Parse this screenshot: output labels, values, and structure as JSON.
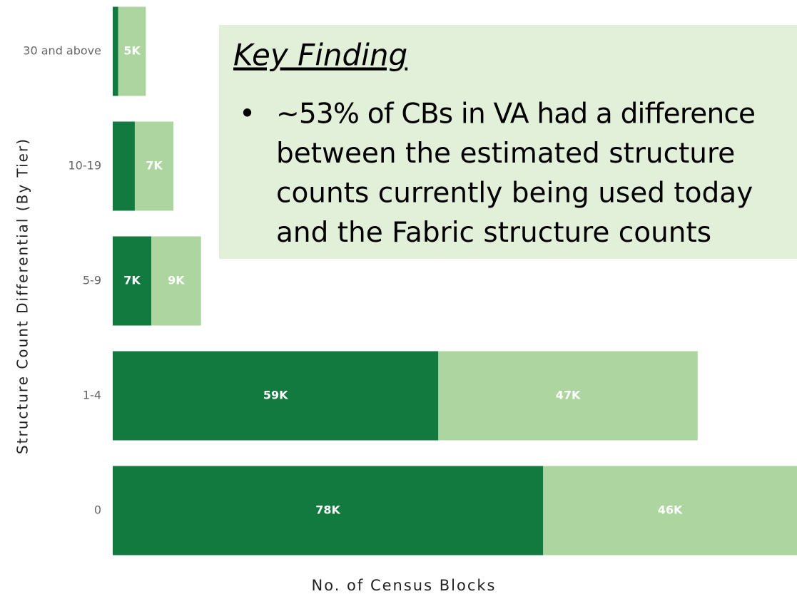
{
  "chart_data": {
    "type": "stacked_barh",
    "categories": [
      "30 and above",
      "10-19",
      "5-9",
      "1-4",
      "0"
    ],
    "series": [
      {
        "color": "#127a3f",
        "values": [
          1,
          4,
          7,
          59,
          78
        ],
        "value_labels": [
          null,
          null,
          "7K",
          "59K",
          "78K"
        ]
      },
      {
        "color": "#acd59f",
        "values": [
          5,
          7,
          9,
          47,
          46
        ],
        "value_labels": [
          "5K",
          "7K",
          "9K",
          "47K",
          "46K"
        ]
      }
    ],
    "xlim": [
      0,
      124
    ],
    "x_label": "No. of Census Blocks",
    "y_label": "Structure Count Differential (By Tier)",
    "annotation": {
      "title": "Key Finding",
      "bullet": "•",
      "lines": [
        "~53% of CBs in VA had a difference",
        "between the estimated structure",
        "counts currently being used today",
        "and the Fabric structure counts"
      ]
    }
  }
}
